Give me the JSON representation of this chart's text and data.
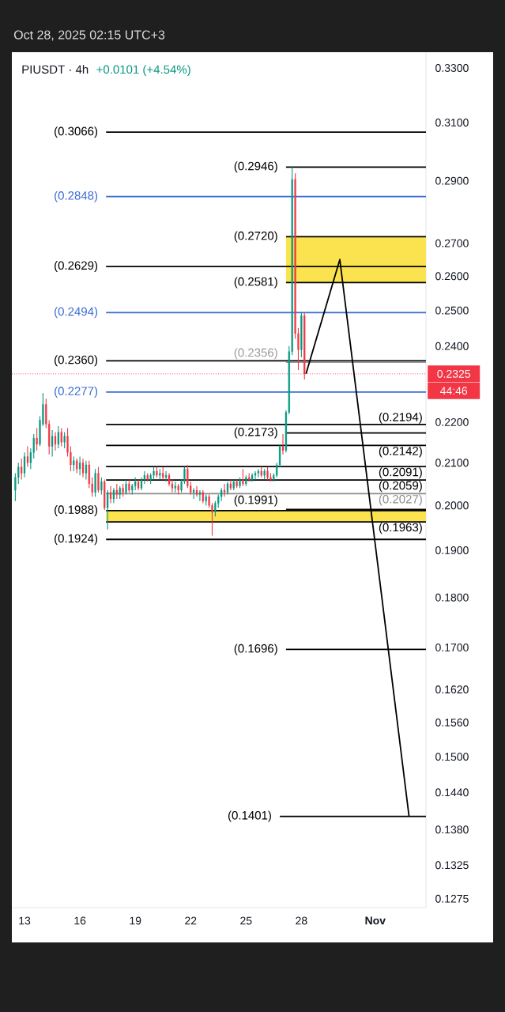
{
  "chart_data": {
    "type": "candlestick",
    "title": "PIUSDT · 4h",
    "subtitle": "+0.0101 (+4.54%)",
    "annotations": [
      "Oct 28, 2025 02:15 UTC+3",
      "44:46"
    ],
    "x": [
      "2025-10-12T12:00",
      "2025-10-12T16:00",
      "2025-10-12T20:00",
      "2025-10-13T00:00",
      "2025-10-13T04:00",
      "2025-10-13T08:00",
      "2025-10-13T12:00",
      "2025-10-13T16:00",
      "2025-10-13T20:00",
      "2025-10-14T00:00",
      "2025-10-14T04:00",
      "2025-10-14T08:00",
      "2025-10-14T12:00",
      "2025-10-14T16:00",
      "2025-10-14T20:00",
      "2025-10-15T00:00",
      "2025-10-15T04:00",
      "2025-10-15T08:00",
      "2025-10-15T12:00",
      "2025-10-15T16:00",
      "2025-10-15T20:00",
      "2025-10-16T00:00",
      "2025-10-16T04:00",
      "2025-10-16T08:00",
      "2025-10-16T12:00",
      "2025-10-16T16:00",
      "2025-10-16T20:00",
      "2025-10-17T00:00",
      "2025-10-17T04:00",
      "2025-10-17T08:00",
      "2025-10-17T12:00",
      "2025-10-17T16:00",
      "2025-10-17T20:00",
      "2025-10-18T00:00",
      "2025-10-18T04:00",
      "2025-10-18T08:00",
      "2025-10-18T12:00",
      "2025-10-18T16:00",
      "2025-10-18T20:00",
      "2025-10-19T00:00",
      "2025-10-19T04:00",
      "2025-10-19T08:00",
      "2025-10-19T12:00",
      "2025-10-19T16:00",
      "2025-10-19T20:00",
      "2025-10-20T00:00",
      "2025-10-20T04:00",
      "2025-10-20T08:00",
      "2025-10-20T12:00",
      "2025-10-20T16:00",
      "2025-10-20T20:00",
      "2025-10-21T00:00",
      "2025-10-21T04:00",
      "2025-10-21T08:00",
      "2025-10-21T12:00",
      "2025-10-21T16:00",
      "2025-10-21T20:00",
      "2025-10-22T00:00",
      "2025-10-22T04:00",
      "2025-10-22T08:00",
      "2025-10-22T12:00",
      "2025-10-22T16:00",
      "2025-10-22T20:00",
      "2025-10-23T00:00",
      "2025-10-23T04:00",
      "2025-10-23T08:00",
      "2025-10-23T12:00",
      "2025-10-23T16:00",
      "2025-10-23T20:00",
      "2025-10-24T00:00",
      "2025-10-24T04:00",
      "2025-10-24T08:00",
      "2025-10-24T12:00",
      "2025-10-24T16:00",
      "2025-10-24T20:00",
      "2025-10-25T00:00",
      "2025-10-25T04:00",
      "2025-10-25T08:00",
      "2025-10-25T12:00",
      "2025-10-25T16:00",
      "2025-10-25T20:00",
      "2025-10-26T00:00",
      "2025-10-26T04:00",
      "2025-10-26T08:00",
      "2025-10-26T12:00",
      "2025-10-26T16:00",
      "2025-10-26T20:00",
      "2025-10-27T00:00",
      "2025-10-27T04:00",
      "2025-10-27T08:00",
      "2025-10-27T12:00",
      "2025-10-27T16:00",
      "2025-10-27T20:00",
      "2025-10-28T00:00",
      "2025-10-28T04:00"
    ],
    "ohlc": [
      [
        0.2035,
        0.2075,
        0.201,
        0.2065
      ],
      [
        0.2065,
        0.21,
        0.205,
        0.209
      ],
      [
        0.209,
        0.211,
        0.206,
        0.2075
      ],
      [
        0.2075,
        0.2125,
        0.2065,
        0.2115
      ],
      [
        0.2115,
        0.214,
        0.209,
        0.21
      ],
      [
        0.21,
        0.2135,
        0.2085,
        0.2125
      ],
      [
        0.2125,
        0.217,
        0.211,
        0.216
      ],
      [
        0.216,
        0.2185,
        0.213,
        0.2145
      ],
      [
        0.2145,
        0.2215,
        0.214,
        0.2205
      ],
      [
        0.2195,
        0.2275,
        0.219,
        0.2245
      ],
      [
        0.2245,
        0.226,
        0.2185,
        0.2195
      ],
      [
        0.2195,
        0.2205,
        0.212,
        0.214
      ],
      [
        0.214,
        0.218,
        0.2115,
        0.2165
      ],
      [
        0.2165,
        0.2175,
        0.213,
        0.2145
      ],
      [
        0.2145,
        0.219,
        0.2135,
        0.2175
      ],
      [
        0.2175,
        0.2185,
        0.214,
        0.215
      ],
      [
        0.215,
        0.2175,
        0.2135,
        0.2165
      ],
      [
        0.2165,
        0.2185,
        0.2115,
        0.2125
      ],
      [
        0.2125,
        0.214,
        0.208,
        0.2095
      ],
      [
        0.2095,
        0.2115,
        0.208,
        0.2105
      ],
      [
        0.2105,
        0.211,
        0.2075,
        0.2085
      ],
      [
        0.2085,
        0.2115,
        0.207,
        0.21
      ],
      [
        0.21,
        0.211,
        0.2065,
        0.2075
      ],
      [
        0.2075,
        0.2105,
        0.206,
        0.2095
      ],
      [
        0.2095,
        0.2105,
        0.204,
        0.205
      ],
      [
        0.205,
        0.2065,
        0.202,
        0.203
      ],
      [
        0.203,
        0.2085,
        0.202,
        0.2075
      ],
      [
        0.2075,
        0.209,
        0.203,
        0.2035
      ],
      [
        0.2035,
        0.2065,
        0.2025,
        0.2055
      ],
      [
        0.2055,
        0.206,
        0.199,
        0.1995
      ],
      [
        0.1995,
        0.2035,
        0.1946,
        0.203
      ],
      [
        0.203,
        0.2045,
        0.2005,
        0.2015
      ],
      [
        0.2015,
        0.204,
        0.2005,
        0.2035
      ],
      [
        0.2035,
        0.205,
        0.2015,
        0.2025
      ],
      [
        0.2025,
        0.2045,
        0.2015,
        0.204
      ],
      [
        0.204,
        0.205,
        0.202,
        0.203
      ],
      [
        0.203,
        0.206,
        0.2025,
        0.205
      ],
      [
        0.205,
        0.206,
        0.203,
        0.2035
      ],
      [
        0.2035,
        0.205,
        0.2025,
        0.2045
      ],
      [
        0.2045,
        0.2065,
        0.2035,
        0.2055
      ],
      [
        0.2055,
        0.206,
        0.2035,
        0.204
      ],
      [
        0.204,
        0.2065,
        0.2035,
        0.206
      ],
      [
        0.206,
        0.208,
        0.205,
        0.207
      ],
      [
        0.207,
        0.2075,
        0.2055,
        0.206
      ],
      [
        0.206,
        0.2075,
        0.205,
        0.207
      ],
      [
        0.207,
        0.209,
        0.206,
        0.208
      ],
      [
        0.208,
        0.209,
        0.2065,
        0.207
      ],
      [
        0.207,
        0.2085,
        0.206,
        0.2075
      ],
      [
        0.2075,
        0.209,
        0.206,
        0.2065
      ],
      [
        0.2065,
        0.208,
        0.2055,
        0.207
      ],
      [
        0.207,
        0.2075,
        0.2045,
        0.205
      ],
      [
        0.205,
        0.206,
        0.203,
        0.204
      ],
      [
        0.204,
        0.2055,
        0.203,
        0.2045
      ],
      [
        0.2045,
        0.205,
        0.2025,
        0.2035
      ],
      [
        0.2035,
        0.206,
        0.203,
        0.2055
      ],
      [
        0.2055,
        0.209,
        0.205,
        0.2085
      ],
      [
        0.2085,
        0.2095,
        0.204,
        0.2045
      ],
      [
        0.2045,
        0.2055,
        0.2025,
        0.203
      ],
      [
        0.203,
        0.204,
        0.2015,
        0.2035
      ],
      [
        0.2035,
        0.2045,
        0.202,
        0.2025
      ],
      [
        0.2025,
        0.2035,
        0.201,
        0.203
      ],
      [
        0.203,
        0.2035,
        0.2005,
        0.201
      ],
      [
        0.201,
        0.2025,
        0.2,
        0.202
      ],
      [
        0.202,
        0.2025,
        0.1995,
        0.2
      ],
      [
        0.2,
        0.2005,
        0.1932,
        0.1985
      ],
      [
        0.1985,
        0.201,
        0.1975,
        0.2005
      ],
      [
        0.2005,
        0.2025,
        0.1995,
        0.202
      ],
      [
        0.202,
        0.204,
        0.201,
        0.2035
      ],
      [
        0.2035,
        0.205,
        0.202,
        0.203
      ],
      [
        0.203,
        0.2055,
        0.2025,
        0.205
      ],
      [
        0.205,
        0.206,
        0.2035,
        0.204
      ],
      [
        0.204,
        0.206,
        0.2035,
        0.2055
      ],
      [
        0.2055,
        0.206,
        0.204,
        0.2045
      ],
      [
        0.2045,
        0.2065,
        0.204,
        0.206
      ],
      [
        0.206,
        0.2085,
        0.2045,
        0.205
      ],
      [
        0.205,
        0.207,
        0.2045,
        0.2065
      ],
      [
        0.2065,
        0.2075,
        0.2055,
        0.206
      ],
      [
        0.206,
        0.2075,
        0.2055,
        0.207
      ],
      [
        0.207,
        0.208,
        0.206,
        0.2075
      ],
      [
        0.2075,
        0.2085,
        0.2065,
        0.208
      ],
      [
        0.208,
        0.209,
        0.2065,
        0.207
      ],
      [
        0.207,
        0.2085,
        0.206,
        0.208
      ],
      [
        0.208,
        0.209,
        0.206,
        0.2065
      ],
      [
        0.2065,
        0.2075,
        0.2055,
        0.206
      ],
      [
        0.206,
        0.2075,
        0.2055,
        0.207
      ],
      [
        0.207,
        0.21,
        0.2065,
        0.2095
      ],
      [
        0.2095,
        0.2145,
        0.209,
        0.214
      ],
      [
        0.214,
        0.217,
        0.212,
        0.213
      ],
      [
        0.213,
        0.223,
        0.2125,
        0.2225
      ],
      [
        0.2225,
        0.24,
        0.222,
        0.2385
      ],
      [
        0.2385,
        0.2946,
        0.2375,
        0.2905
      ],
      [
        0.2905,
        0.2925,
        0.242,
        0.2435
      ],
      [
        0.2435,
        0.245,
        0.2335,
        0.239
      ],
      [
        0.239,
        0.2494,
        0.237,
        0.2485
      ],
      [
        0.2485,
        0.2494,
        0.231,
        0.2325
      ]
    ],
    "colors": [
      "#089981",
      "#089981",
      "#f23645",
      "#089981",
      "#f23645",
      "#089981",
      "#089981",
      "#f23645",
      "#089981",
      "#089981",
      "#f23645",
      "#f23645",
      "#089981",
      "#f23645",
      "#089981",
      "#f23645",
      "#089981",
      "#f23645",
      "#f23645",
      "#089981",
      "#f23645",
      "#089981",
      "#f23645",
      "#089981",
      "#f23645",
      "#f23645",
      "#089981",
      "#f23645",
      "#089981",
      "#f23645",
      "#089981",
      "#f23645",
      "#089981",
      "#f23645",
      "#089981",
      "#f23645",
      "#089981",
      "#f23645",
      "#089981",
      "#089981",
      "#f23645",
      "#089981",
      "#089981",
      "#f23645",
      "#089981",
      "#089981",
      "#f23645",
      "#089981",
      "#f23645",
      "#089981",
      "#f23645",
      "#f23645",
      "#089981",
      "#f23645",
      "#089981",
      "#089981",
      "#f23645",
      "#f23645",
      "#089981",
      "#f23645",
      "#089981",
      "#f23645",
      "#089981",
      "#f23645",
      "#f23645",
      "#089981",
      "#089981",
      "#089981",
      "#f23645",
      "#089981",
      "#f23645",
      "#089981",
      "#f23645",
      "#089981",
      "#f23645",
      "#089981",
      "#f23645",
      "#089981",
      "#089981",
      "#089981",
      "#f23645",
      "#089981",
      "#f23645",
      "#f23645",
      "#089981",
      "#089981",
      "#089981",
      "#f23645",
      "#089981",
      "#089981",
      "#089981",
      "#f23645",
      "#f23645",
      "#089981",
      "#f23645"
    ],
    "series": [
      {
        "type": "line",
        "name": "(0.3066)",
        "color": "#000000",
        "x": [
          "2025-10-17T10:00",
          "2025-11-03T18:00"
        ],
        "values": [
          0.3066,
          0.3066
        ]
      },
      {
        "type": "line",
        "name": "(0.2946)",
        "color": "#000000",
        "x": [
          "2025-10-27T04:00",
          "2025-11-03T18:00"
        ],
        "values": [
          0.2946,
          0.2946
        ]
      },
      {
        "type": "line",
        "name": "(0.2848)",
        "color": "#3a6bd4",
        "x": [
          "2025-10-17T10:00",
          "2025-11-03T18:00"
        ],
        "values": [
          0.2848,
          0.2848
        ]
      },
      {
        "type": "line",
        "name": "(0.2720)",
        "color": "#000000",
        "x": [
          "2025-10-27T04:00",
          "2025-11-03T18:00"
        ],
        "values": [
          0.272,
          0.272
        ]
      },
      {
        "type": "line",
        "name": "(0.2629)",
        "color": "#000000",
        "x": [
          "2025-10-17T10:00",
          "2025-11-03T18:00"
        ],
        "values": [
          0.2629,
          0.2629
        ]
      },
      {
        "type": "line",
        "name": "(0.2581)",
        "color": "#000000",
        "x": [
          "2025-10-27T04:00",
          "2025-11-03T18:00"
        ],
        "values": [
          0.2581,
          0.2581
        ]
      },
      {
        "type": "line",
        "name": "(0.2494)",
        "color": "#3a6bd4",
        "x": [
          "2025-10-17T10:00",
          "2025-11-03T18:00"
        ],
        "values": [
          0.2494,
          0.2494
        ]
      },
      {
        "type": "line",
        "name": "(0.2360)",
        "color": "#000000",
        "x": [
          "2025-10-17T10:00",
          "2025-11-03T18:00"
        ],
        "values": [
          0.236,
          0.236
        ]
      },
      {
        "type": "line",
        "name": "(0.2356)",
        "color": "#9a9a9a",
        "x": [
          "2025-10-27T04:00",
          "2025-11-03T18:00"
        ],
        "values": [
          0.2356,
          0.2356
        ]
      },
      {
        "type": "line",
        "name": "(0.2277)",
        "color": "#3a6bd4",
        "x": [
          "2025-10-17T10:00",
          "2025-11-03T18:00"
        ],
        "values": [
          0.2277,
          0.2277
        ]
      },
      {
        "type": "line",
        "name": "(0.2194)",
        "color": "#000000",
        "x": [
          "2025-10-17T10:00",
          "2025-11-03T18:00"
        ],
        "values": [
          0.2194,
          0.2194
        ]
      },
      {
        "type": "line",
        "name": "(0.2173)",
        "color": "#000000",
        "x": [
          "2025-10-27T04:00",
          "2025-11-03T18:00"
        ],
        "values": [
          0.2173,
          0.2173
        ]
      },
      {
        "type": "line",
        "name": "(0.2142)",
        "color": "#000000",
        "x": [
          "2025-10-17T10:00",
          "2025-11-03T18:00"
        ],
        "values": [
          0.2142,
          0.2142
        ]
      },
      {
        "type": "line",
        "name": "(0.2091)",
        "color": "#000000",
        "x": [
          "2025-10-17T10:00",
          "2025-11-03T18:00"
        ],
        "values": [
          0.2091,
          0.2091
        ]
      },
      {
        "type": "line",
        "name": "(0.2059)",
        "color": "#000000",
        "x": [
          "2025-10-17T10:00",
          "2025-11-03T18:00"
        ],
        "values": [
          0.2059,
          0.2059
        ]
      },
      {
        "type": "line",
        "name": "(0.2027)",
        "color": "#8c8c8c",
        "x": [
          "2025-10-17T10:00",
          "2025-11-03T18:00"
        ],
        "values": [
          0.2027,
          0.2027
        ]
      },
      {
        "type": "line",
        "name": "(0.1991)",
        "color": "#000000",
        "x": [
          "2025-10-27T04:00",
          "2025-11-03T18:00"
        ],
        "values": [
          0.1991,
          0.1991
        ]
      },
      {
        "type": "line",
        "name": "(0.1988)",
        "color": "#000000",
        "x": [
          "2025-10-17T10:00",
          "2025-11-03T18:00"
        ],
        "values": [
          0.1988,
          0.1988
        ]
      },
      {
        "type": "line",
        "name": "(0.1963)",
        "color": "#000000",
        "x": [
          "2025-10-17T10:00",
          "2025-11-03T18:00"
        ],
        "values": [
          0.1963,
          0.1963
        ]
      },
      {
        "type": "line",
        "name": "(0.1924)",
        "color": "#000000",
        "x": [
          "2025-10-17T10:00",
          "2025-11-03T18:00"
        ],
        "values": [
          0.1924,
          0.1924
        ]
      },
      {
        "type": "line",
        "name": "(0.1696)",
        "color": "#000000",
        "x": [
          "2025-10-27T04:00",
          "2025-11-03T18:00"
        ],
        "values": [
          0.1696,
          0.1696
        ]
      },
      {
        "type": "line",
        "name": "(0.1401)",
        "color": "#000000",
        "x": [
          "2025-10-26T20:00",
          "2025-11-03T18:00"
        ],
        "values": [
          0.1401,
          0.1401
        ]
      },
      {
        "type": "line",
        "color": "#000000",
        "x": [
          "2025-10-28T06:00",
          "2025-10-30T02:00",
          "2025-11-02T20:00"
        ],
        "values": [
          0.2325,
          0.265,
          0.1401
        ]
      }
    ],
    "bands": [
      {
        "axis": "y",
        "from": 0.2581,
        "to": 0.272,
        "color": "#fbe34f"
      },
      {
        "axis": "y",
        "from": 0.1963,
        "to": 0.1988,
        "color": "#fbe34f"
      }
    ],
    "ref_lines": [
      {
        "axis": "y",
        "value": 0.2325,
        "label": "0.2325",
        "color": "#f23645",
        "line_style": "dotted"
      }
    ],
    "xlim": [
      "2025-10-12T07:30",
      "2025-11-03T18:00"
    ],
    "xticks": [
      {
        "value": "2025-10-13",
        "label": "13"
      },
      {
        "value": "2025-10-16",
        "label": "16"
      },
      {
        "value": "2025-10-19",
        "label": "19"
      },
      {
        "value": "2025-10-22",
        "label": "22"
      },
      {
        "value": "2025-10-25",
        "label": "25"
      },
      {
        "value": "2025-10-28",
        "label": "28"
      },
      {
        "value": "2025-11-01",
        "label": "Nov"
      }
    ],
    "ylim": [
      0.1262,
      0.336
    ],
    "log": true,
    "yticks": [
      {
        "value": 0.33,
        "label": "0.3300"
      },
      {
        "value": 0.31,
        "label": "0.3100"
      },
      {
        "value": 0.29,
        "label": "0.2900"
      },
      {
        "value": 0.27,
        "label": "0.2700"
      },
      {
        "value": 0.26,
        "label": "0.2600"
      },
      {
        "value": 0.25,
        "label": "0.2500"
      },
      {
        "value": 0.24,
        "label": "0.2400"
      },
      {
        "value": 0.22,
        "label": "0.2200"
      },
      {
        "value": 0.21,
        "label": "0.2100"
      },
      {
        "value": 0.2,
        "label": "0.2000"
      },
      {
        "value": 0.19,
        "label": "0.1900"
      },
      {
        "value": 0.18,
        "label": "0.1800"
      },
      {
        "value": 0.17,
        "label": "0.1700"
      },
      {
        "value": 0.162,
        "label": "0.1620"
      },
      {
        "value": 0.156,
        "label": "0.1560"
      },
      {
        "value": 0.15,
        "label": "0.1500"
      },
      {
        "value": 0.144,
        "label": "0.1440"
      },
      {
        "value": 0.138,
        "label": "0.1380"
      },
      {
        "value": 0.1325,
        "label": "0.1325"
      },
      {
        "value": 0.1275,
        "label": "0.1275"
      }
    ]
  }
}
